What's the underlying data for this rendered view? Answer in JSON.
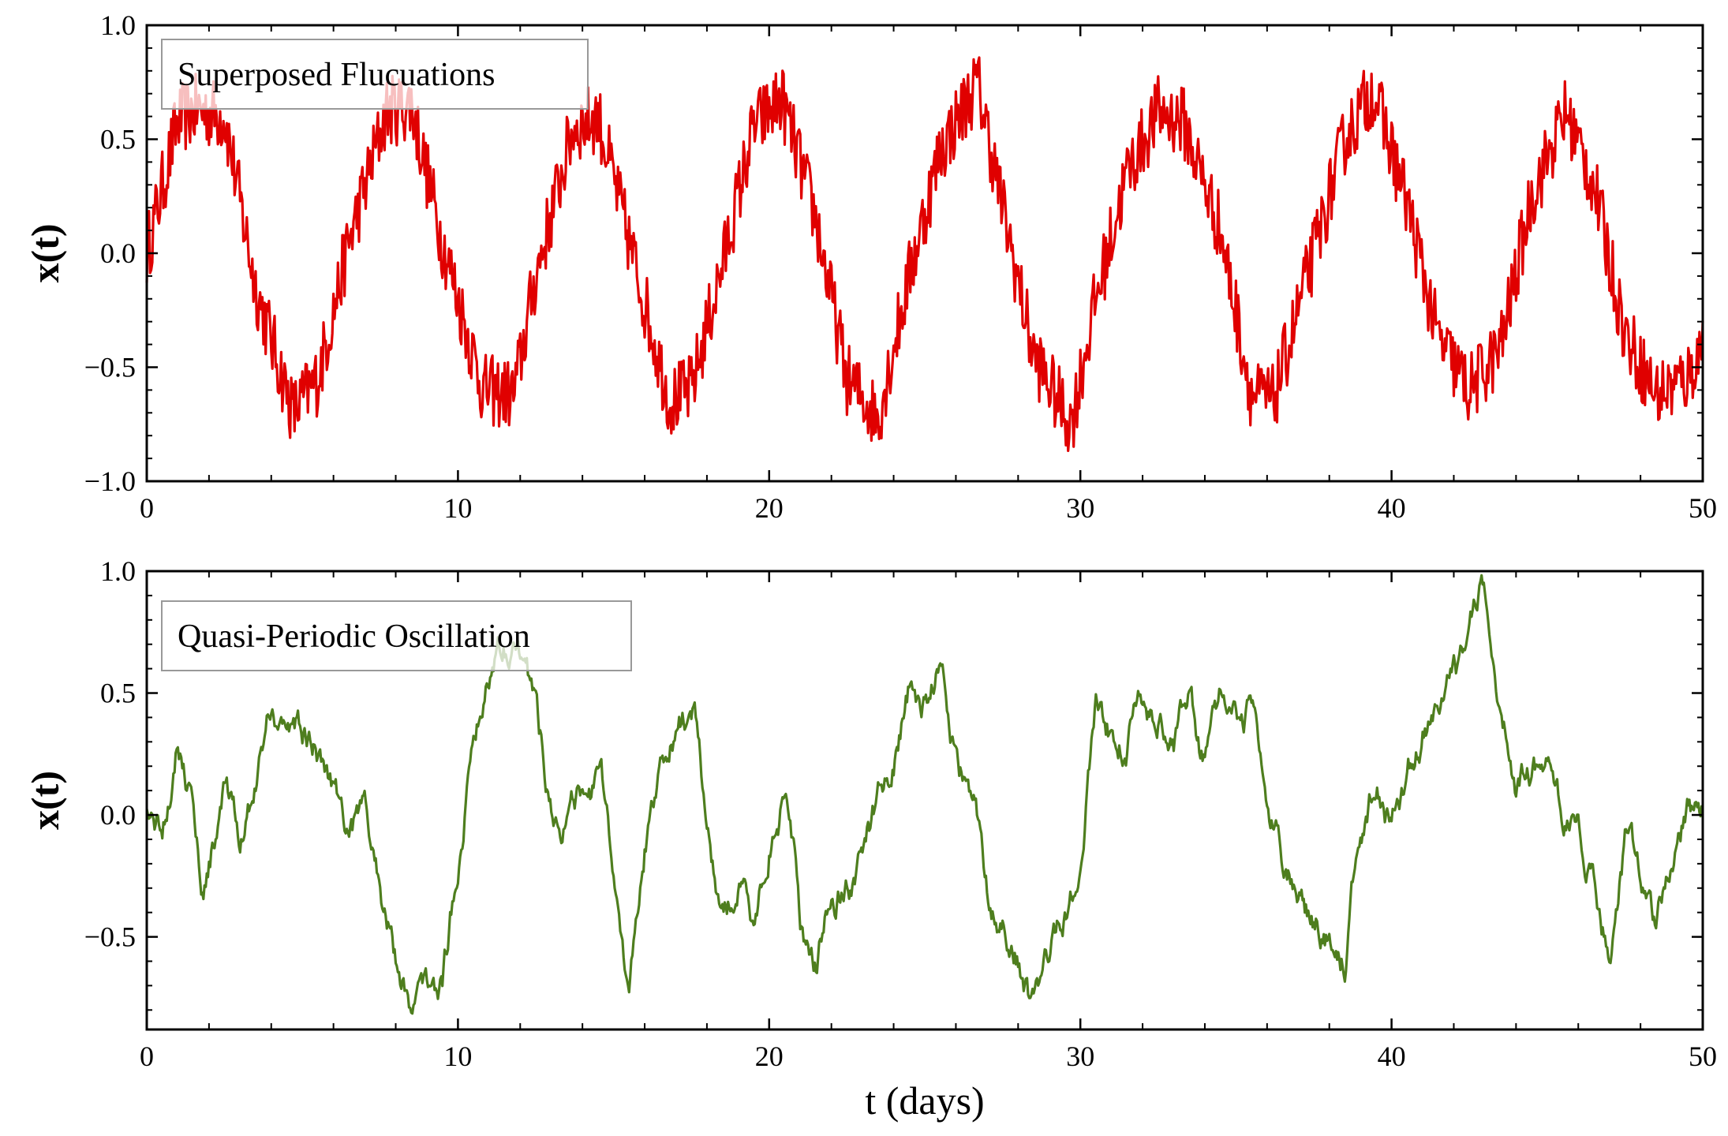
{
  "chart_data": [
    {
      "type": "line",
      "id": "top",
      "legend": "Superposed Flucuations",
      "ylabel": "x(t)",
      "xlabel": "",
      "xlim": [
        0,
        50
      ],
      "ylim": [
        -1.0,
        1.0
      ],
      "xticks": [
        0,
        10,
        20,
        30,
        40,
        50
      ],
      "yticks": [
        -1.0,
        -0.5,
        0.0,
        0.5,
        1.0
      ],
      "xtick_labels": [
        "0",
        "10",
        "20",
        "30",
        "40",
        "50"
      ],
      "ytick_labels": [
        "−1.0",
        "−0.5",
        "0.0",
        "0.5",
        "1.0"
      ],
      "color": "#e00000",
      "series": [
        {
          "name": "Superposed Flucuations",
          "x": [
            0,
            1,
            1.6,
            2.5,
            3.5,
            4.7,
            5.5,
            6.5,
            7.7,
            8.5,
            9.5,
            10.8,
            11.8,
            12.5,
            13.7,
            14.5,
            15.5,
            16.8,
            17.5,
            18.5,
            19.5,
            20.4,
            21.5,
            22.5,
            23.5,
            24.5,
            25.5,
            26.7,
            27.5,
            28.5,
            29.7,
            30.5,
            31.5,
            32.5,
            33.3,
            34.5,
            35.5,
            36.2,
            37.5,
            38.5,
            39.4,
            40.5,
            41.5,
            42.5,
            43.5,
            44.5,
            45.6,
            46.5,
            47.5,
            48.5,
            49.5,
            50
          ],
          "y": [
            0,
            0.58,
            0.63,
            0.6,
            -0.15,
            -0.7,
            -0.55,
            0.05,
            0.62,
            0.65,
            0.05,
            -0.6,
            -0.62,
            -0.1,
            0.55,
            0.6,
            0.05,
            -0.65,
            -0.6,
            -0.05,
            0.55,
            0.68,
            0.15,
            -0.55,
            -0.72,
            -0.1,
            0.45,
            0.75,
            0.2,
            -0.45,
            -0.75,
            -0.2,
            0.35,
            0.62,
            0.58,
            0.1,
            -0.62,
            -0.65,
            0.0,
            0.5,
            0.72,
            0.22,
            -0.38,
            -0.6,
            -0.42,
            0.25,
            0.62,
            0.3,
            -0.35,
            -0.62,
            -0.55,
            -0.4
          ]
        }
      ]
    },
    {
      "type": "line",
      "id": "bottom",
      "legend": "Quasi-Periodic Oscillation",
      "ylabel": "x(t)",
      "xlabel": "t (days)",
      "xlim": [
        0,
        50
      ],
      "ylim": [
        -0.88,
        1.0
      ],
      "xticks": [
        0,
        10,
        20,
        30,
        40,
        50
      ],
      "yticks": [
        -0.5,
        0.0,
        0.5,
        1.0
      ],
      "xtick_labels": [
        "0",
        "10",
        "20",
        "30",
        "40",
        "50"
      ],
      "ytick_labels": [
        "−0.5",
        "0.0",
        "0.5",
        "1.0"
      ],
      "color": "#4e7e1e",
      "series": [
        {
          "name": "Quasi-Periodic Oscillation",
          "x": [
            0,
            0.5,
            1.0,
            1.4,
            1.8,
            2.5,
            3.0,
            4.0,
            4.7,
            5.3,
            6.0,
            6.5,
            7.0,
            7.5,
            8.0,
            8.5,
            9.5,
            10.0,
            10.5,
            11.2,
            11.8,
            12.4,
            13.0,
            13.5,
            14.0,
            14.6,
            15.0,
            15.5,
            16.0,
            16.5,
            17.0,
            17.6,
            18.0,
            18.5,
            19.0,
            19.5,
            20.0,
            20.6,
            21.0,
            21.5,
            22.0,
            22.7,
            23.5,
            24.0,
            24.5,
            25.0,
            25.5,
            26.0,
            26.6,
            27.0,
            27.5,
            28.0,
            28.4,
            29.0,
            29.5,
            30.0,
            30.5,
            31.0,
            31.5,
            32.0,
            32.6,
            33.0,
            33.5,
            34.0,
            34.6,
            35.0,
            35.6,
            36.0,
            36.5,
            37.0,
            37.5,
            38.0,
            38.5,
            39.0,
            39.5,
            40.0,
            40.5,
            41.0,
            41.5,
            42.0,
            42.5,
            42.9,
            43.5,
            44.0,
            44.5,
            45.0,
            45.5,
            46.0,
            46.5,
            47.0,
            47.5,
            48.0,
            48.5,
            49.0,
            49.5,
            50
          ],
          "y": [
            0,
            -0.05,
            0.35,
            0.1,
            -0.3,
            0.1,
            -0.15,
            0.45,
            0.35,
            0.3,
            0.15,
            -0.05,
            0.0,
            -0.3,
            -0.6,
            -0.75,
            -0.7,
            -0.2,
            0.35,
            0.7,
            0.75,
            0.5,
            0.05,
            0.0,
            0.05,
            0.12,
            -0.3,
            -0.7,
            -0.15,
            0.25,
            0.35,
            0.45,
            -0.1,
            -0.4,
            -0.3,
            -0.45,
            -0.1,
            0.1,
            -0.45,
            -0.6,
            -0.35,
            -0.25,
            0.05,
            0.25,
            0.5,
            0.45,
            0.62,
            0.25,
            0.0,
            -0.3,
            -0.45,
            -0.55,
            -0.8,
            -0.55,
            -0.4,
            -0.2,
            0.45,
            0.35,
            0.3,
            0.45,
            0.4,
            0.3,
            0.5,
            0.2,
            0.48,
            0.45,
            0.4,
            0.05,
            -0.2,
            -0.3,
            -0.45,
            -0.5,
            -0.6,
            -0.05,
            0.15,
            -0.05,
            0.15,
            0.35,
            0.4,
            0.55,
            0.7,
            0.95,
            0.5,
            0.1,
            0.2,
            0.2,
            0.0,
            -0.1,
            -0.3,
            -0.6,
            -0.1,
            -0.3,
            -0.45,
            -0.2,
            0.0,
            0.0
          ]
        }
      ]
    }
  ]
}
